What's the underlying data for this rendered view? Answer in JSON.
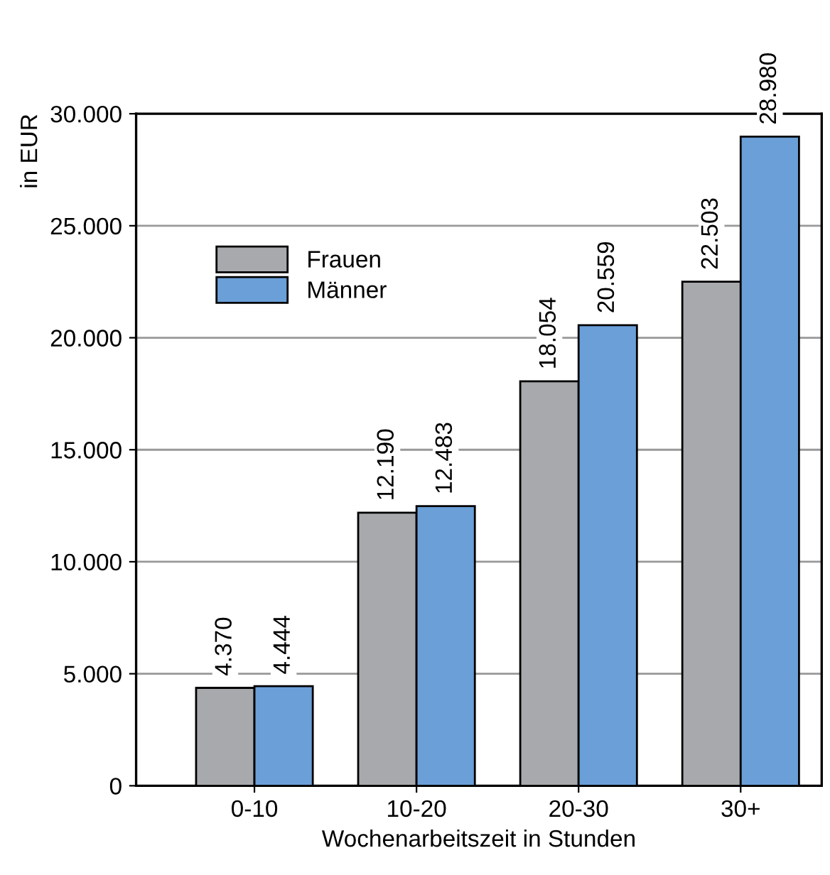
{
  "chart_data": {
    "type": "bar",
    "xlabel": "Wochenarbeitszeit in Stunden",
    "ylabel": "in EUR",
    "categories": [
      "0-10",
      "10-20",
      "20-30",
      "30+"
    ],
    "series": [
      {
        "name": "Frauen",
        "color": "#a7a9ac",
        "values": [
          4370,
          12190,
          18054,
          22503
        ],
        "value_labels": [
          "4.370",
          "12.190",
          "18.054",
          "22.503"
        ]
      },
      {
        "name": "Männer",
        "color": "#6a9fd8",
        "values": [
          4444,
          12483,
          20559,
          28980
        ],
        "value_labels": [
          "4.444",
          "12.483",
          "20.559",
          "28.980"
        ]
      }
    ],
    "ylim": [
      0,
      30000
    ],
    "yticks": [
      0,
      {
        "value": 5000,
        "label": "5.000"
      },
      {
        "value": 10000,
        "label": "10.000"
      },
      {
        "value": 15000,
        "label": "15.000"
      },
      {
        "value": 20000,
        "label": "20.000"
      },
      {
        "value": 25000,
        "label": "25.000"
      },
      {
        "value": 30000,
        "label": "30.000"
      }
    ],
    "grid": "y",
    "legend": "top left"
  }
}
